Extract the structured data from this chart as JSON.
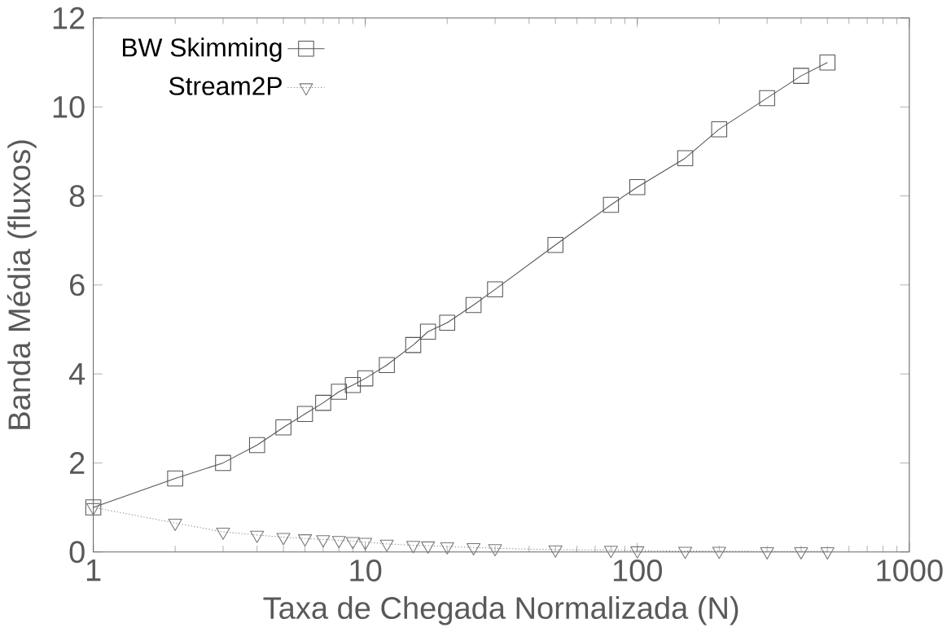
{
  "chart_data": {
    "type": "line",
    "xlabel": "Taxa de Chegada Normalizada (N)",
    "ylabel": "Banda Média (fluxos)",
    "log": "x",
    "xlim": [
      1,
      1000
    ],
    "xticks": [
      1,
      10,
      100,
      1000
    ],
    "ylim": [
      0,
      12
    ],
    "yticks": [
      0,
      2,
      4,
      6,
      8,
      10,
      12
    ],
    "grid": false,
    "legend": "top left",
    "x": [
      1,
      2,
      3,
      4,
      5,
      6,
      7,
      8,
      9,
      10,
      12,
      15,
      17,
      20,
      25,
      30,
      50,
      80,
      100,
      150,
      200,
      300,
      400,
      500
    ],
    "series": [
      {
        "name": "BW Skimming",
        "color": "#555555",
        "marker": "square",
        "line_style": "solid",
        "values": [
          1.0,
          1.65,
          2.0,
          2.4,
          2.8,
          3.1,
          3.35,
          3.6,
          3.75,
          3.9,
          4.2,
          4.65,
          4.95,
          5.15,
          5.55,
          5.9,
          6.9,
          7.8,
          8.2,
          8.85,
          9.5,
          10.2,
          10.7,
          11.0
        ]
      },
      {
        "name": "Stream2P",
        "color": "#777777",
        "marker": "triangle",
        "line_style": "dotted",
        "values": [
          1.0,
          0.65,
          0.45,
          0.38,
          0.33,
          0.3,
          0.28,
          0.26,
          0.24,
          0.22,
          0.18,
          0.15,
          0.14,
          0.12,
          0.1,
          0.08,
          0.05,
          0.04,
          0.03,
          0.02,
          0.02,
          0.01,
          0.01,
          0.01
        ]
      }
    ]
  }
}
